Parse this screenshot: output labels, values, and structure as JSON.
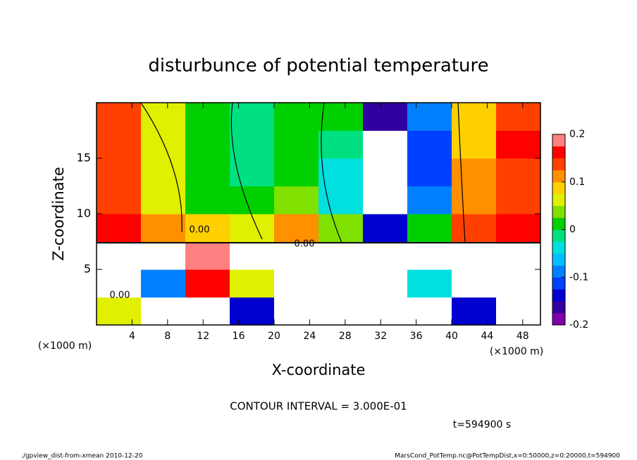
{
  "chart_data": {
    "type": "heatmap",
    "title": "disturbunce of potential temperature",
    "xlabel": "X-coordinate",
    "ylabel": "Z-coordinate",
    "x_unit": "(×1000 m)",
    "y_unit": "(×1000 m)",
    "xlim": [
      0,
      50
    ],
    "ylim": [
      0,
      20
    ],
    "xticks": [
      4,
      8,
      12,
      16,
      20,
      24,
      28,
      32,
      36,
      40,
      44,
      48
    ],
    "yticks": [
      5,
      10,
      15
    ],
    "x": [
      2.5,
      7.5,
      12.5,
      17.5,
      22.5,
      27.5,
      32.5,
      37.5,
      42.5,
      47.5
    ],
    "y": [
      1.25,
      3.75,
      6.25,
      8.75,
      11.25,
      13.75,
      16.25,
      18.75
    ],
    "z": [
      [
        0.05,
        0.3,
        0.3,
        -0.15,
        0.3,
        0.3,
        0.3,
        0.3,
        -0.15,
        0.3
      ],
      [
        0.3,
        -0.1,
        0.17,
        0.05,
        0.3,
        0.3,
        0.3,
        -0.05,
        0.3,
        0.3
      ],
      [
        0.3,
        0.3,
        0.18,
        0.3,
        0.3,
        0.3,
        0.3,
        0.3,
        0.3,
        0.3
      ],
      [
        0.17,
        0.12,
        0.08,
        0.05,
        0.1,
        0.04,
        -0.15,
        0.0,
        0.14,
        0.17
      ],
      [
        0.14,
        0.07,
        0.01,
        0.0,
        0.03,
        -0.03,
        -0.25,
        -0.1,
        0.11,
        0.15
      ],
      [
        0.14,
        0.05,
        0.0,
        -0.01,
        0.02,
        -0.03,
        -0.25,
        -0.12,
        0.1,
        0.15
      ],
      [
        0.15,
        0.06,
        0.0,
        -0.02,
        0.01,
        -0.02,
        -0.25,
        -0.12,
        0.09,
        0.16
      ],
      [
        0.15,
        0.06,
        0.0,
        -0.02,
        0.01,
        0.0,
        -0.16,
        -0.1,
        0.08,
        0.15
      ]
    ],
    "zlim": [
      -0.2,
      0.2
    ],
    "zticks": [
      -0.2,
      -0.1,
      0,
      0.1,
      0.2
    ],
    "colors": [
      "#8000a8",
      "#3000a0",
      "#0000d0",
      "#0040ff",
      "#0080ff",
      "#00c0ff",
      "#00e0e0",
      "#00e080",
      "#00d000",
      "#80e000",
      "#e0f000",
      "#ffd000",
      "#ff9000",
      "#ff4000",
      "#ff0000",
      "#ff8080"
    ],
    "out_of_range_color": "#ffffff",
    "contour_labels": [
      "0.00",
      "0.00",
      "0.00"
    ],
    "contour_interval": "CONTOUR INTERVAL = 3.000E-01",
    "time_label": "t=594900 s",
    "footer_left": "./gpview_dist-from-xmean  2010-12-20",
    "footer_right": "MarsCond_PotTemp.nc@PotTempDist,x=0:50000,z=0:20000,t=594900"
  }
}
